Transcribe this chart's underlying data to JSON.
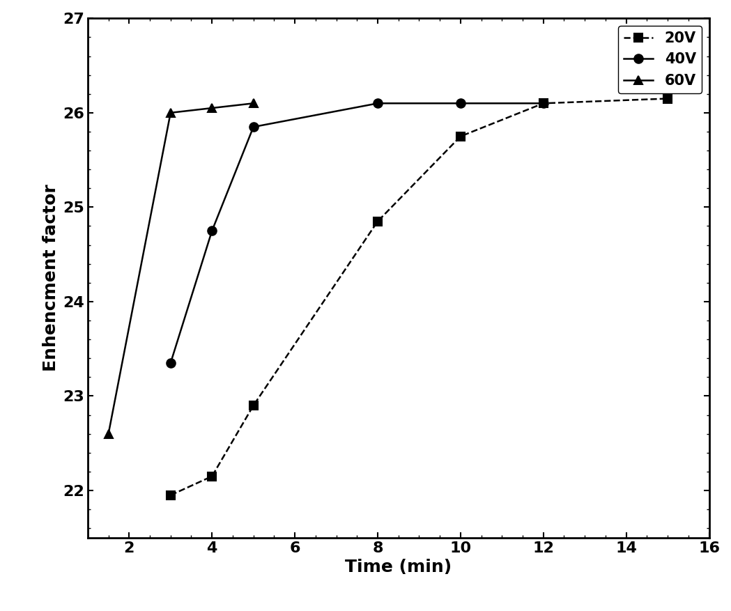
{
  "series": [
    {
      "label": "20V",
      "x": [
        3,
        4,
        5,
        8,
        10,
        12,
        15
      ],
      "y": [
        21.95,
        22.15,
        22.9,
        24.85,
        25.75,
        26.1,
        26.15
      ],
      "marker": "s",
      "linestyle": "--",
      "color": "#000000"
    },
    {
      "label": "40V",
      "x": [
        3,
        4,
        5,
        8,
        10,
        12
      ],
      "y": [
        23.35,
        24.75,
        25.85,
        26.1,
        26.1,
        26.1
      ],
      "marker": "o",
      "linestyle": "-",
      "color": "#000000"
    },
    {
      "label": "60V",
      "x": [
        1.5,
        3,
        4,
        5
      ],
      "y": [
        22.6,
        26.0,
        26.05,
        26.1
      ],
      "marker": "^",
      "linestyle": "-",
      "color": "#000000"
    }
  ],
  "xlabel": "Time (min)",
  "ylabel": "Enhencment factor",
  "xlim": [
    1,
    16
  ],
  "ylim": [
    21.5,
    27.0
  ],
  "xticks": [
    2,
    4,
    6,
    8,
    10,
    12,
    14,
    16
  ],
  "yticks": [
    22,
    23,
    24,
    25,
    26,
    27
  ],
  "legend_loc": "upper right",
  "markersize": 9,
  "linewidth": 1.8,
  "fontsize_labels": 18,
  "fontsize_ticks": 16,
  "fontsize_legend": 15,
  "background_color": "#ffffff"
}
